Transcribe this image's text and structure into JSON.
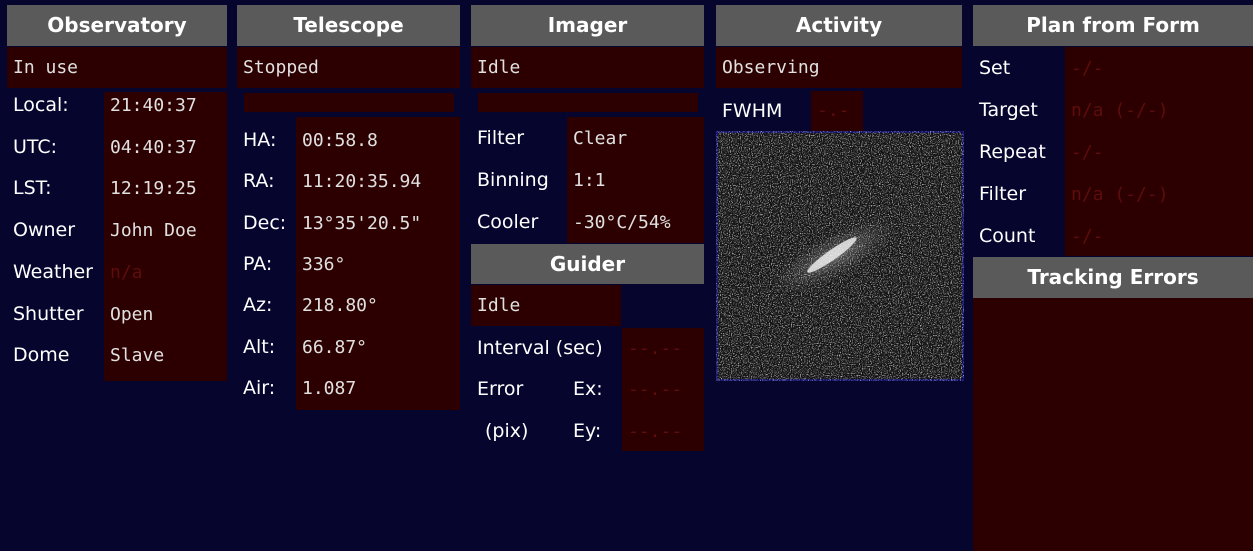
{
  "observatory": {
    "title": "Observatory",
    "status": "In use",
    "rows": [
      {
        "label": "Local:",
        "value": "21:40:37"
      },
      {
        "label": "UTC:",
        "value": "04:40:37"
      },
      {
        "label": "LST:",
        "value": "12:19:25"
      },
      {
        "label": "Owner",
        "value": "John Doe"
      },
      {
        "label": "Weather",
        "value": "n/a"
      },
      {
        "label": "Shutter",
        "value": "Open"
      },
      {
        "label": "Dome",
        "value": "Slave"
      }
    ]
  },
  "telescope": {
    "title": "Telescope",
    "status": "Stopped",
    "rows": [
      {
        "label": "HA:",
        "value": "00:58.8"
      },
      {
        "label": "RA:",
        "value": "11:20:35.94"
      },
      {
        "label": "Dec:",
        "value": "13°35'20.5\""
      },
      {
        "label": "PA:",
        "value": "336°"
      },
      {
        "label": "Az:",
        "value": "218.80°"
      },
      {
        "label": "Alt:",
        "value": "66.87°"
      },
      {
        "label": "Air:",
        "value": "1.087"
      }
    ]
  },
  "imager": {
    "title": "Imager",
    "status": "Idle",
    "rows": [
      {
        "label": "Filter",
        "value": "Clear"
      },
      {
        "label": "Binning",
        "value": "1:1"
      },
      {
        "label": "Cooler",
        "value": "-30°C/54%"
      }
    ]
  },
  "guider": {
    "title": "Guider",
    "status": "Idle",
    "interval": {
      "label": "Interval (sec)",
      "value": "--.--"
    },
    "error": {
      "label": "Error",
      "sub_label": "(pix)",
      "ex_label": "Ex:",
      "ex": "--.--",
      "ey_label": "Ey:",
      "ey": "--.--"
    }
  },
  "activity": {
    "title": "Activity",
    "status": "Observing",
    "fwhm_label": "FWHM",
    "fwhm": "-.-"
  },
  "plan": {
    "title": "Plan from Form",
    "rows": [
      {
        "label": "Set",
        "value": "-/-"
      },
      {
        "label": "Target",
        "value": "n/a (-/-)"
      },
      {
        "label": "Repeat",
        "value": "-/-"
      },
      {
        "label": "Filter",
        "value": "n/a (-/-)"
      },
      {
        "label": "Count",
        "value": "-/-"
      }
    ]
  },
  "tracking": {
    "title": "Tracking Errors"
  }
}
